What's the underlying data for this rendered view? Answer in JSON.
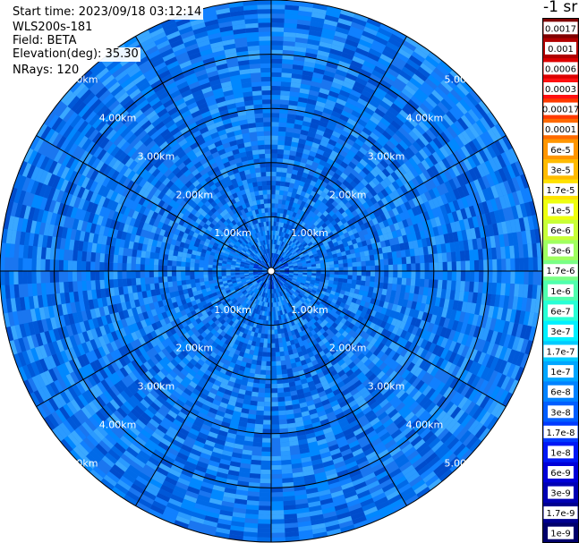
{
  "header": {
    "start_time": "Start time: 2023/09/18 03:12:14",
    "instrument": "WLS200s-181",
    "field": "Field: BETA",
    "elevation": "Elevation(deg): 35.30",
    "nrays": "NRays: 120"
  },
  "chart_data": {
    "type": "heatmap",
    "projection": "polar",
    "field": "BETA",
    "range_rings_km": [
      1,
      2,
      3,
      4,
      5
    ],
    "max_range_km": 5.0,
    "spokes": 12,
    "ring_labels": [
      "1.00km",
      "2.00km",
      "3.00km",
      "4.00km",
      "5.00km"
    ],
    "dominant_value_near": "1e-7",
    "colorbar": {
      "unit_label": "-1 sr",
      "tick_labels": [
        "0.0017",
        "0.001",
        "0.0006",
        "0.0003",
        "0.00017",
        "0.0001",
        "6e-5",
        "3e-5",
        "1.7e-5",
        "1e-5",
        "6e-6",
        "3e-6",
        "1.7e-6",
        "1e-6",
        "6e-7",
        "3e-7",
        "1.7e-7",
        "1e-7",
        "6e-8",
        "3e-8",
        "1.7e-8",
        "1e-8",
        "6e-9",
        "3e-9",
        "1.7e-9",
        "1e-9"
      ],
      "colors": [
        "#800000",
        "#b00000",
        "#dd0000",
        "#ff1010",
        "#ff3a00",
        "#ff6a00",
        "#ff9600",
        "#ffbb00",
        "#ffe200",
        "#eeff10",
        "#c8ff38",
        "#a0ff60",
        "#7aff86",
        "#50ffae",
        "#28ffd6",
        "#00f0ff",
        "#00cbff",
        "#00a6ff",
        "#0082ff",
        "#005eff",
        "#003aff",
        "#0018f5",
        "#0000d8",
        "#0000b4",
        "#000090",
        "#00006c"
      ]
    }
  }
}
